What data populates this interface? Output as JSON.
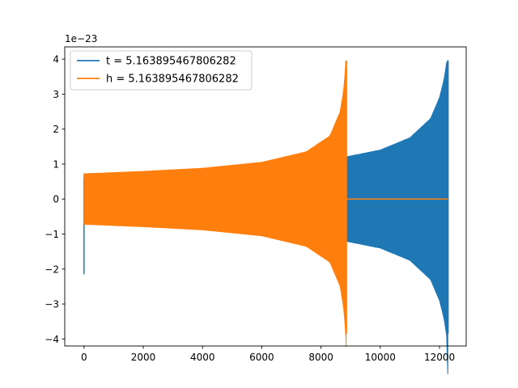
{
  "chart_data": {
    "type": "line",
    "offset_label": "1e−23",
    "xlim": [
      -650,
      12900
    ],
    "ylim": [
      -4.2,
      4.35
    ],
    "x_ticks": [
      0,
      2000,
      4000,
      6000,
      8000,
      10000,
      12000
    ],
    "x_tick_labels": [
      "0",
      "2000",
      "4000",
      "6000",
      "8000",
      "10000",
      "12000"
    ],
    "y_ticks": [
      -4,
      -3,
      -2,
      -1,
      0,
      1,
      2,
      3,
      4
    ],
    "y_tick_labels": [
      "−4",
      "−3",
      "−2",
      "−1",
      "0",
      "1",
      "2",
      "3",
      "4"
    ],
    "grid": false,
    "legend_position": "upper-left",
    "series": [
      {
        "name": "t = 5.163895467806282",
        "color": "#1f77b4",
        "x_start": 0,
        "x_end": 12290,
        "merger_x": 12280,
        "initial_spike": {
          "x": 0,
          "min": -2.15,
          "max": 0.6
        },
        "envelope": [
          [
            0,
            0.72
          ],
          [
            2000,
            0.76
          ],
          [
            4000,
            0.81
          ],
          [
            6000,
            0.89
          ],
          [
            8000,
            1.06
          ],
          [
            10000,
            1.4
          ],
          [
            11000,
            1.75
          ],
          [
            11700,
            2.3
          ],
          [
            12000,
            2.9
          ],
          [
            12150,
            3.4
          ],
          [
            12250,
            3.95
          ]
        ],
        "peak_min": -3.85
      },
      {
        "name": "h = 5.163895467806282",
        "color": "#ff7f0e",
        "x_start": 0,
        "x_end": 12290,
        "merger_x": 8850,
        "envelope": [
          [
            0,
            0.72
          ],
          [
            2000,
            0.79
          ],
          [
            4000,
            0.88
          ],
          [
            6000,
            1.05
          ],
          [
            7500,
            1.35
          ],
          [
            8300,
            1.8
          ],
          [
            8650,
            2.5
          ],
          [
            8780,
            3.2
          ],
          [
            8840,
            3.95
          ]
        ],
        "peak_min": -3.85,
        "post_merger_value": 0
      }
    ]
  }
}
